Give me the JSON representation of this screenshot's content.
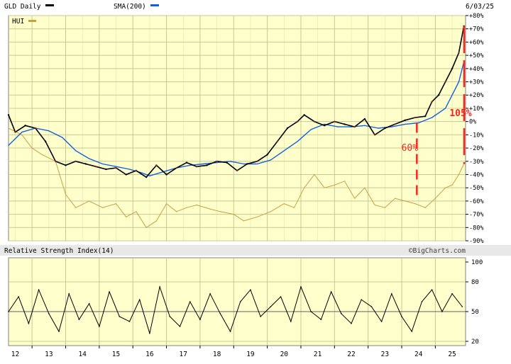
{
  "header": {
    "symbol_label": "GLD Daily",
    "sma_label": "SMA(200)",
    "date_label": "6/03/25",
    "hui_label": "HUI",
    "watermark": "©BigCharts.com"
  },
  "colors": {
    "background": "#ffffcc",
    "grid": "#c8c896",
    "gld_price": "#000000",
    "gld_down_ticks": "#a02020",
    "sma": "#1060e0",
    "hui": "#c8a040",
    "annotation": "#ff2020",
    "panel_bar": "#e8e8e8",
    "rsi_line": "#000000"
  },
  "chart_data": [
    {
      "type": "line",
      "title": "GLD Daily",
      "x_ticks": [
        "12",
        "13",
        "14",
        "15",
        "16",
        "17",
        "18",
        "19",
        "20",
        "21",
        "22",
        "23",
        "24",
        "25"
      ],
      "y_ticks": [
        "+80%",
        "+70%",
        "+60%",
        "+50%",
        "+40%",
        "+30%",
        "+20%",
        "+10%",
        "0%",
        "-10%",
        "-20%",
        "-30%",
        "-40%",
        "-50%",
        "-60%",
        "-70%",
        "-80%",
        "-90%"
      ],
      "ylim": [
        -90,
        80
      ],
      "grid": true,
      "legend": "top-left",
      "series": [
        {
          "name": "GLD Daily",
          "x": [
            11.8,
            12.0,
            12.3,
            12.6,
            12.9,
            13.2,
            13.5,
            13.8,
            14.1,
            14.4,
            14.7,
            15.0,
            15.3,
            15.6,
            15.9,
            16.2,
            16.5,
            16.8,
            17.1,
            17.4,
            17.7,
            18.0,
            18.3,
            18.6,
            18.9,
            19.2,
            19.5,
            19.8,
            20.1,
            20.4,
            20.6,
            20.9,
            21.2,
            21.5,
            21.8,
            22.1,
            22.4,
            22.7,
            23.0,
            23.3,
            23.6,
            23.9,
            24.2,
            24.4,
            24.6,
            24.8,
            25.0,
            25.2,
            25.35
          ],
          "values": [
            5,
            -8,
            -3,
            -5,
            -15,
            -30,
            -33,
            -30,
            -32,
            -34,
            -36,
            -35,
            -40,
            -37,
            -42,
            -33,
            -40,
            -35,
            -31,
            -34,
            -33,
            -30,
            -31,
            -37,
            -32,
            -30,
            -25,
            -15,
            -5,
            0,
            5,
            0,
            -3,
            0,
            -2,
            -4,
            2,
            -10,
            -5,
            -2,
            1,
            3,
            4,
            15,
            20,
            30,
            40,
            52,
            72
          ]
        },
        {
          "name": "SMA(200)",
          "x": [
            11.8,
            12.2,
            12.6,
            13.0,
            13.4,
            13.8,
            14.2,
            14.6,
            15.0,
            15.4,
            15.8,
            16.0,
            16.4,
            16.8,
            17.2,
            17.6,
            18.0,
            18.4,
            18.8,
            19.2,
            19.6,
            20.0,
            20.4,
            20.8,
            21.2,
            21.6,
            22.0,
            22.4,
            22.8,
            23.2,
            23.6,
            24.0,
            24.4,
            24.8,
            25.0,
            25.2,
            25.35
          ],
          "values": [
            -18,
            -8,
            -5,
            -7,
            -12,
            -22,
            -28,
            -32,
            -34,
            -36,
            -39,
            -41,
            -38,
            -35,
            -33,
            -32,
            -31,
            -30,
            -32,
            -32,
            -29,
            -22,
            -15,
            -6,
            -2,
            -4,
            -4,
            -3,
            -5,
            -4,
            -2,
            -1,
            3,
            10,
            20,
            30,
            45
          ]
        },
        {
          "name": "HUI",
          "x": [
            11.8,
            12.2,
            12.5,
            12.8,
            13.2,
            13.5,
            13.8,
            14.2,
            14.6,
            15.0,
            15.3,
            15.6,
            15.9,
            16.2,
            16.5,
            16.8,
            17.1,
            17.4,
            17.8,
            18.1,
            18.5,
            18.8,
            19.2,
            19.6,
            20.0,
            20.3,
            20.6,
            20.9,
            21.2,
            21.5,
            21.8,
            22.1,
            22.4,
            22.7,
            23.0,
            23.3,
            23.6,
            23.9,
            24.2,
            24.5,
            24.8,
            25.0,
            25.2,
            25.35
          ],
          "values": [
            -5,
            -10,
            -20,
            -25,
            -30,
            -55,
            -65,
            -60,
            -65,
            -62,
            -72,
            -68,
            -80,
            -75,
            -62,
            -68,
            -65,
            -63,
            -66,
            -68,
            -70,
            -75,
            -72,
            -68,
            -62,
            -65,
            -50,
            -40,
            -50,
            -48,
            -45,
            -58,
            -50,
            -63,
            -65,
            -58,
            -60,
            -62,
            -65,
            -58,
            -50,
            -48,
            -40,
            -32
          ]
        }
      ],
      "annotations": [
        "60%",
        "105%"
      ]
    },
    {
      "type": "line",
      "title": "Relative Strength Index(14)",
      "y_ticks": [
        "100",
        "80",
        "50",
        "20"
      ],
      "ylim": [
        20,
        100
      ],
      "grid": true,
      "series": [
        {
          "name": "Relative Strength Index(14)",
          "x": [
            11.8,
            12.1,
            12.4,
            12.7,
            13.0,
            13.3,
            13.6,
            13.9,
            14.2,
            14.5,
            14.8,
            15.1,
            15.4,
            15.7,
            16.0,
            16.3,
            16.6,
            16.9,
            17.2,
            17.5,
            17.8,
            18.1,
            18.4,
            18.7,
            19.0,
            19.3,
            19.6,
            19.9,
            20.2,
            20.5,
            20.8,
            21.1,
            21.4,
            21.7,
            22.0,
            22.3,
            22.6,
            22.9,
            23.2,
            23.5,
            23.8,
            24.1,
            24.4,
            24.7,
            25.0,
            25.3
          ],
          "values": [
            50,
            65,
            38,
            72,
            48,
            30,
            68,
            42,
            58,
            35,
            70,
            45,
            40,
            62,
            28,
            75,
            45,
            35,
            60,
            42,
            68,
            48,
            30,
            60,
            72,
            45,
            55,
            65,
            40,
            75,
            50,
            42,
            70,
            48,
            38,
            62,
            55,
            40,
            68,
            45,
            30,
            60,
            72,
            50,
            68,
            55
          ]
        }
      ]
    }
  ]
}
